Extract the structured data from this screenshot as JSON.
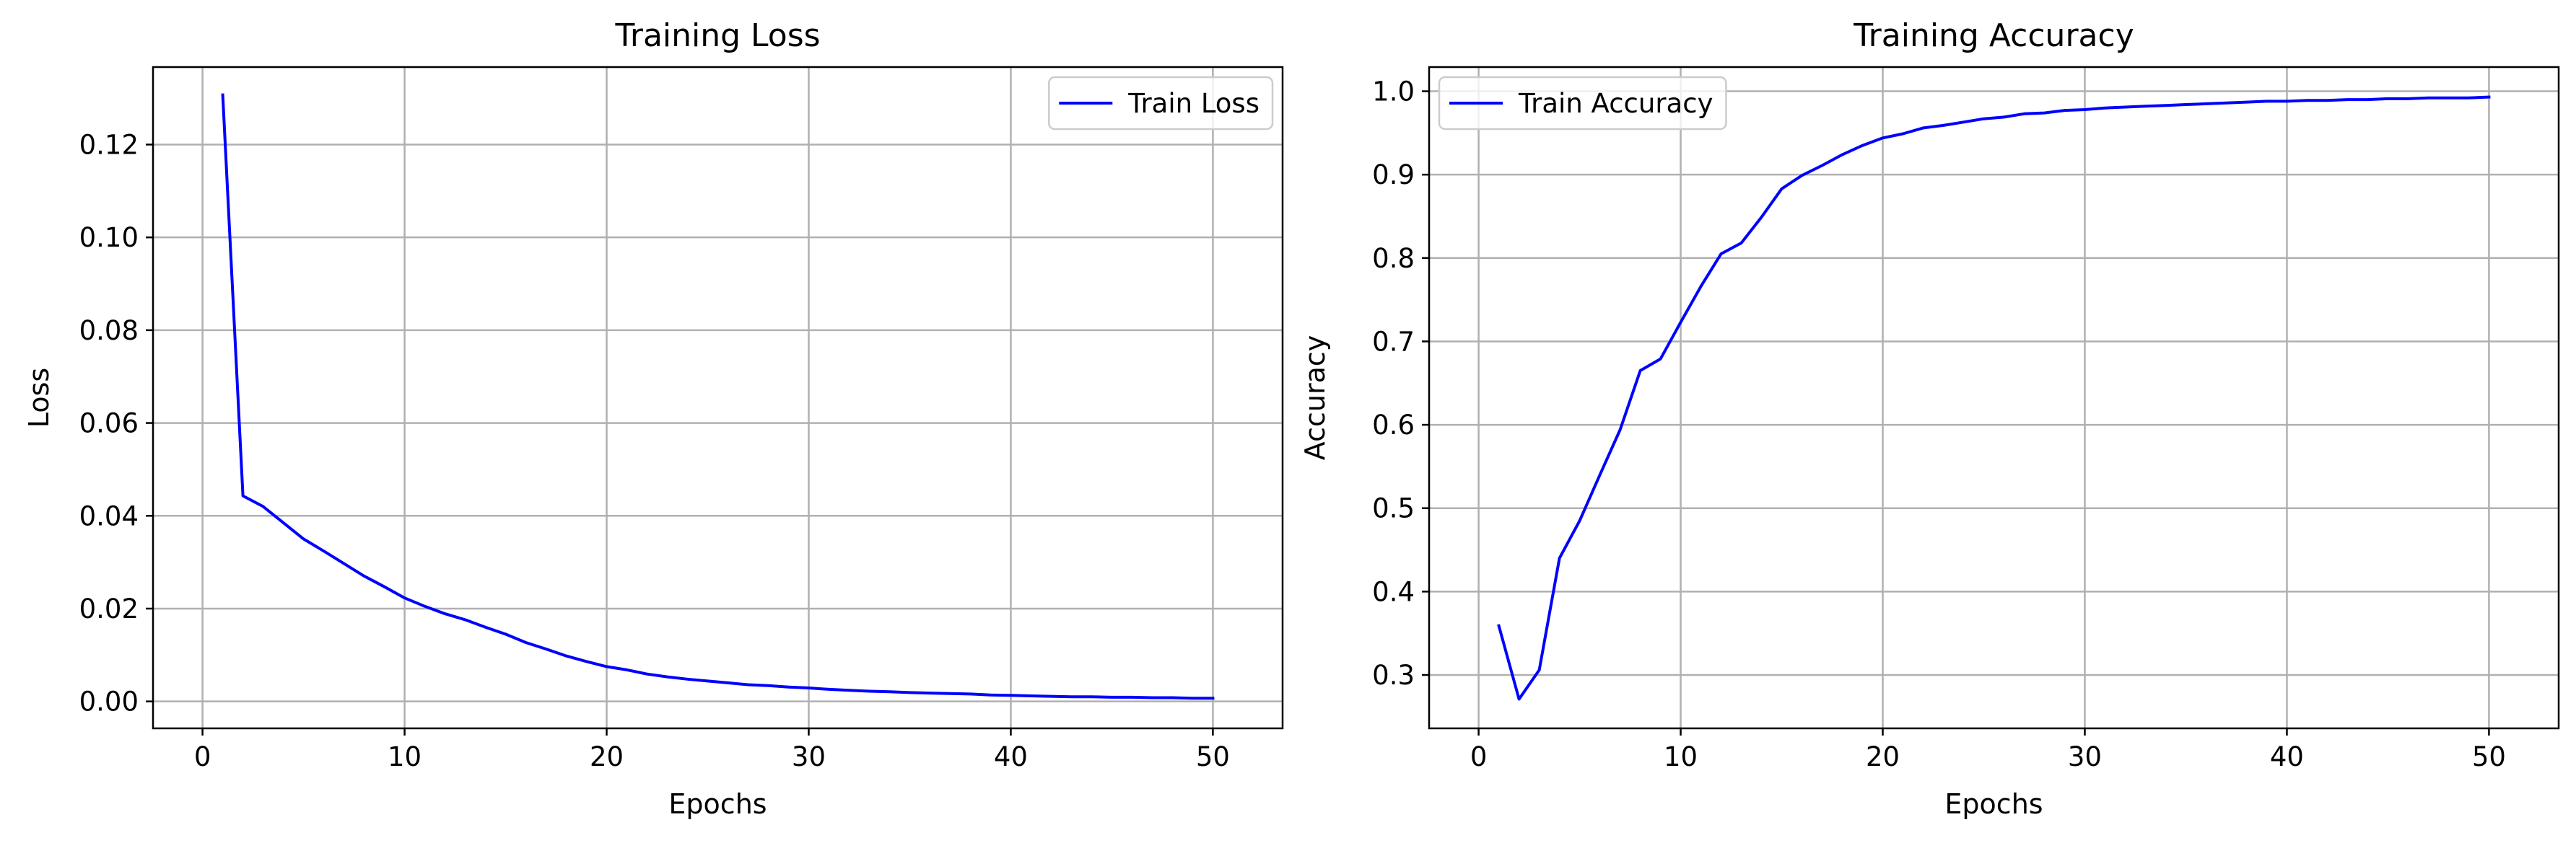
{
  "chart_data": [
    {
      "type": "line",
      "title": "Training Loss",
      "xlabel": "Epochs",
      "ylabel": "Loss",
      "xlim": [
        -2.45,
        53.45
      ],
      "ylim": [
        -0.0058,
        0.1367
      ],
      "xticks": [
        0,
        10,
        20,
        30,
        40,
        50
      ],
      "xtick_labels": [
        "0",
        "10",
        "20",
        "30",
        "40",
        "50"
      ],
      "yticks": [
        0.0,
        0.02,
        0.04,
        0.06,
        0.08,
        0.1,
        0.12
      ],
      "ytick_labels": [
        "0.00",
        "0.02",
        "0.04",
        "0.06",
        "0.08",
        "0.10",
        "0.12"
      ],
      "grid": true,
      "legend_position": "top-right",
      "series": [
        {
          "name": "Train Loss",
          "color": "#0000ff",
          "x": [
            1,
            2,
            3,
            4,
            5,
            6,
            7,
            8,
            9,
            10,
            11,
            12,
            13,
            14,
            15,
            16,
            17,
            18,
            19,
            20,
            21,
            22,
            23,
            24,
            25,
            26,
            27,
            28,
            29,
            30,
            31,
            32,
            33,
            34,
            35,
            36,
            37,
            38,
            39,
            40,
            41,
            42,
            43,
            44,
            45,
            46,
            47,
            48,
            49,
            50
          ],
          "y": [
            0.1307,
            0.0443,
            0.042,
            0.0385,
            0.035,
            0.0324,
            0.0297,
            0.027,
            0.0247,
            0.0223,
            0.0205,
            0.0189,
            0.0176,
            0.016,
            0.0145,
            0.0127,
            0.0113,
            0.0098,
            0.0086,
            0.0075,
            0.0068,
            0.0059,
            0.0053,
            0.0048,
            0.0044,
            0.004,
            0.0036,
            0.0034,
            0.0031,
            0.0029,
            0.0026,
            0.0024,
            0.0022,
            0.0021,
            0.0019,
            0.0018,
            0.0017,
            0.0016,
            0.0014,
            0.0013,
            0.0012,
            0.0011,
            0.001,
            0.001,
            0.0009,
            0.0009,
            0.0008,
            0.0008,
            0.0007,
            0.0007
          ]
        }
      ]
    },
    {
      "type": "line",
      "title": "Training Accuracy",
      "xlabel": "Epochs",
      "ylabel": "Accuracy",
      "xlim": [
        -2.45,
        53.45
      ],
      "ylim": [
        0.236,
        1.029
      ],
      "xticks": [
        0,
        10,
        20,
        30,
        40,
        50
      ],
      "xtick_labels": [
        "0",
        "10",
        "20",
        "30",
        "40",
        "50"
      ],
      "yticks": [
        0.3,
        0.4,
        0.5,
        0.6,
        0.7,
        0.8,
        0.9,
        1.0
      ],
      "ytick_labels": [
        "0.3",
        "0.4",
        "0.5",
        "0.6",
        "0.7",
        "0.8",
        "0.9",
        "1.0"
      ],
      "grid": true,
      "legend_position": "top-left",
      "series": [
        {
          "name": "Train Accuracy",
          "color": "#0000ff",
          "x": [
            1,
            2,
            3,
            4,
            5,
            6,
            7,
            8,
            9,
            10,
            11,
            12,
            13,
            14,
            15,
            16,
            17,
            18,
            19,
            20,
            21,
            22,
            23,
            24,
            25,
            26,
            27,
            28,
            29,
            30,
            31,
            32,
            33,
            34,
            35,
            36,
            37,
            38,
            39,
            40,
            41,
            42,
            43,
            44,
            45,
            46,
            47,
            48,
            49,
            50
          ],
          "y": [
            0.359,
            0.271,
            0.306,
            0.44,
            0.485,
            0.54,
            0.594,
            0.665,
            0.679,
            0.723,
            0.766,
            0.805,
            0.818,
            0.849,
            0.883,
            0.899,
            0.911,
            0.924,
            0.935,
            0.944,
            0.949,
            0.956,
            0.959,
            0.963,
            0.967,
            0.969,
            0.973,
            0.974,
            0.977,
            0.978,
            0.98,
            0.981,
            0.982,
            0.983,
            0.984,
            0.985,
            0.986,
            0.987,
            0.988,
            0.988,
            0.989,
            0.989,
            0.99,
            0.99,
            0.991,
            0.991,
            0.992,
            0.992,
            0.992,
            0.993
          ]
        }
      ]
    }
  ]
}
